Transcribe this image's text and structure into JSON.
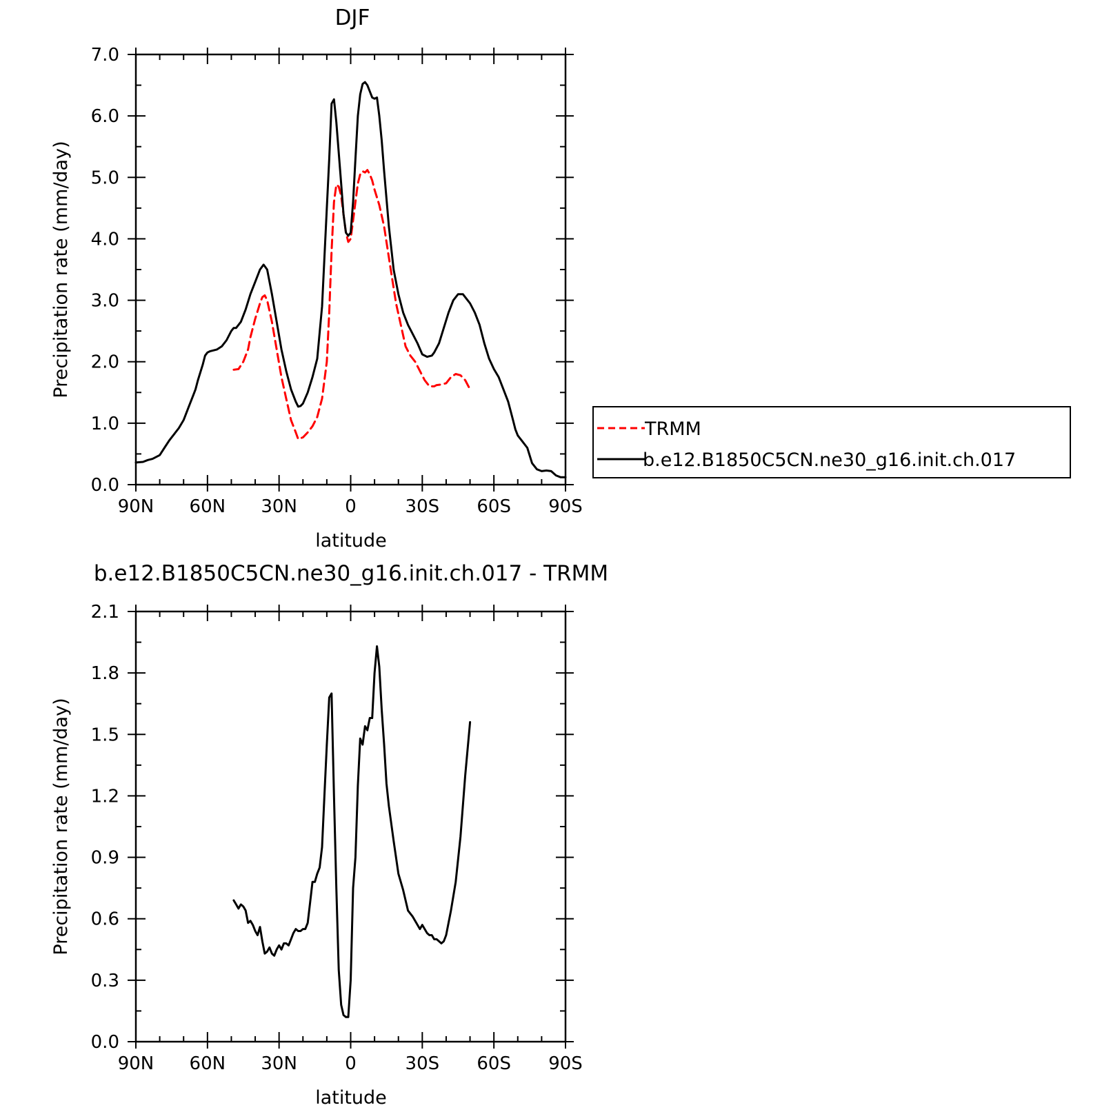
{
  "chart_data": [
    {
      "type": "line",
      "title": "DJF",
      "xlabel": "latitude",
      "ylabel": "Precipitation rate (mm/day)",
      "xlim": [
        -90,
        90
      ],
      "ylim": [
        0,
        7
      ],
      "x_ticks": [
        {
          "value": -90,
          "label": "90N"
        },
        {
          "value": -60,
          "label": "60N"
        },
        {
          "value": -30,
          "label": "30N"
        },
        {
          "value": 0,
          "label": "0"
        },
        {
          "value": 30,
          "label": "30S"
        },
        {
          "value": 60,
          "label": "60S"
        },
        {
          "value": 90,
          "label": "90S"
        }
      ],
      "y_ticks": [
        {
          "value": 0,
          "label": "0.0"
        },
        {
          "value": 1,
          "label": "1.0"
        },
        {
          "value": 2,
          "label": "2.0"
        },
        {
          "value": 3,
          "label": "3.0"
        },
        {
          "value": 4,
          "label": "4.0"
        },
        {
          "value": 5,
          "label": "5.0"
        },
        {
          "value": 6,
          "label": "6.0"
        },
        {
          "value": 7,
          "label": "7.0"
        }
      ],
      "legend_position": "right",
      "series": [
        {
          "name": "TRMM",
          "color": "#ff0000",
          "dash": "dashed",
          "x": [
            -49,
            -47,
            -45,
            -43,
            -42,
            -40,
            -38,
            -37,
            -36,
            -35,
            -33,
            -31,
            -29,
            -27,
            -25,
            -23,
            -22,
            -20,
            -18,
            -16,
            -14,
            -12,
            -10,
            -9,
            -8,
            -7,
            -6,
            -5,
            -4,
            -3,
            -2,
            -1,
            0,
            1,
            2,
            3,
            4,
            5,
            6,
            7,
            8,
            9,
            10,
            12,
            14,
            15,
            17,
            19,
            21,
            23,
            25,
            27,
            29,
            31,
            33,
            35,
            36,
            38,
            40,
            42,
            44,
            46,
            48,
            50
          ],
          "y": [
            1.87,
            1.88,
            2.0,
            2.2,
            2.4,
            2.7,
            2.95,
            3.05,
            3.08,
            3.0,
            2.65,
            2.2,
            1.75,
            1.4,
            1.05,
            0.85,
            0.74,
            0.77,
            0.85,
            0.95,
            1.1,
            1.4,
            2.0,
            2.8,
            3.8,
            4.6,
            4.88,
            4.85,
            4.7,
            4.4,
            4.1,
            3.95,
            4.0,
            4.3,
            4.6,
            4.9,
            5.05,
            5.1,
            5.08,
            5.12,
            5.05,
            4.95,
            4.8,
            4.55,
            4.2,
            3.95,
            3.45,
            2.95,
            2.6,
            2.25,
            2.1,
            2.0,
            1.85,
            1.7,
            1.6,
            1.6,
            1.62,
            1.63,
            1.65,
            1.75,
            1.8,
            1.78,
            1.7,
            1.55
          ]
        },
        {
          "name": "b.e12.B1850C5CN.ne30_g16.init.ch.017",
          "color": "#000000",
          "dash": "solid",
          "x": [
            -90,
            -87,
            -85,
            -83,
            -80,
            -78,
            -76,
            -74,
            -72,
            -70,
            -68,
            -66,
            -65,
            -64,
            -62,
            -61,
            -60,
            -59,
            -58,
            -56,
            -54,
            -52,
            -50,
            -49,
            -48,
            -46,
            -44,
            -42,
            -40,
            -38,
            -36.5,
            -35,
            -33,
            -31,
            -29,
            -27,
            -25,
            -23,
            -22,
            -21,
            -20,
            -18,
            -16,
            -14,
            -12,
            -10,
            -9,
            -8,
            -7,
            -6,
            -5,
            -4,
            -3,
            -2,
            -1,
            0,
            1,
            2,
            3,
            4,
            5,
            6,
            7,
            8,
            9,
            10,
            11,
            12,
            13,
            14,
            16,
            18,
            20,
            22,
            24,
            26,
            28,
            30,
            32,
            34,
            35,
            37,
            39,
            41,
            43,
            45,
            47,
            49,
            50,
            52,
            54,
            56,
            58,
            60,
            62,
            64,
            66,
            67,
            68,
            69,
            70,
            72,
            74,
            76,
            78,
            80,
            82,
            84,
            86,
            88,
            90
          ],
          "y": [
            0.36,
            0.37,
            0.4,
            0.42,
            0.48,
            0.6,
            0.72,
            0.82,
            0.92,
            1.05,
            1.25,
            1.45,
            1.55,
            1.7,
            1.95,
            2.1,
            2.15,
            2.17,
            2.18,
            2.2,
            2.25,
            2.35,
            2.5,
            2.55,
            2.55,
            2.65,
            2.85,
            3.1,
            3.3,
            3.5,
            3.58,
            3.5,
            3.1,
            2.65,
            2.2,
            1.85,
            1.55,
            1.35,
            1.27,
            1.28,
            1.32,
            1.5,
            1.75,
            2.05,
            2.9,
            4.5,
            5.3,
            6.2,
            6.27,
            5.9,
            5.4,
            4.9,
            4.4,
            4.1,
            4.05,
            4.1,
            4.6,
            5.3,
            6.0,
            6.35,
            6.52,
            6.55,
            6.5,
            6.4,
            6.3,
            6.28,
            6.3,
            6.0,
            5.6,
            5.1,
            4.2,
            3.5,
            3.1,
            2.8,
            2.6,
            2.45,
            2.3,
            2.12,
            2.08,
            2.1,
            2.15,
            2.3,
            2.55,
            2.8,
            3.0,
            3.1,
            3.1,
            3.0,
            2.95,
            2.8,
            2.6,
            2.3,
            2.05,
            1.88,
            1.75,
            1.55,
            1.35,
            1.2,
            1.05,
            0.9,
            0.8,
            0.7,
            0.6,
            0.35,
            0.25,
            0.22,
            0.23,
            0.22,
            0.15,
            0.12,
            0.12
          ]
        }
      ]
    },
    {
      "type": "line",
      "title": "b.e12.B1850C5CN.ne30_g16.init.ch.017 - TRMM",
      "xlabel": "latitude",
      "ylabel": "Precipitation rate (mm/day)",
      "xlim": [
        -90,
        90
      ],
      "ylim": [
        0,
        2.1
      ],
      "x_ticks": [
        {
          "value": -90,
          "label": "90N"
        },
        {
          "value": -60,
          "label": "60N"
        },
        {
          "value": -30,
          "label": "30N"
        },
        {
          "value": 0,
          "label": "0"
        },
        {
          "value": 30,
          "label": "30S"
        },
        {
          "value": 60,
          "label": "60S"
        },
        {
          "value": 90,
          "label": "90S"
        }
      ],
      "y_ticks": [
        {
          "value": 0,
          "label": "0.0"
        },
        {
          "value": 0.3,
          "label": "0.3"
        },
        {
          "value": 0.6,
          "label": "0.6"
        },
        {
          "value": 0.9,
          "label": "0.9"
        },
        {
          "value": 1.2,
          "label": "1.2"
        },
        {
          "value": 1.5,
          "label": "1.5"
        },
        {
          "value": 1.8,
          "label": "1.8"
        },
        {
          "value": 2.1,
          "label": "2.1"
        }
      ],
      "series": [
        {
          "color": "#000000",
          "dash": "solid",
          "x": [
            -49,
            -48,
            -47,
            -46,
            -45,
            -44,
            -43,
            -42,
            -41,
            -40,
            -39,
            -38,
            -37,
            -36,
            -35,
            -34,
            -33,
            -32,
            -31,
            -30,
            -29,
            -28,
            -27,
            -26,
            -25,
            -24,
            -23,
            -22,
            -21,
            -20,
            -19,
            -18,
            -17,
            -16,
            -15,
            -14,
            -13,
            -12,
            -11,
            -10,
            -9,
            -8,
            -7,
            -6,
            -5,
            -4,
            -3,
            -2,
            -1,
            0,
            1,
            2,
            3,
            4,
            5,
            6,
            7,
            8,
            9,
            10,
            11,
            12,
            13,
            14,
            15,
            16,
            18,
            20,
            22,
            24,
            26,
            28,
            29,
            30,
            31,
            32,
            33,
            34,
            35,
            36,
            37,
            38,
            39,
            40,
            42,
            44,
            46,
            48,
            50
          ],
          "y": [
            0.69,
            0.67,
            0.65,
            0.67,
            0.66,
            0.64,
            0.58,
            0.59,
            0.57,
            0.54,
            0.52,
            0.56,
            0.49,
            0.43,
            0.44,
            0.46,
            0.43,
            0.42,
            0.45,
            0.47,
            0.45,
            0.48,
            0.48,
            0.47,
            0.5,
            0.53,
            0.55,
            0.54,
            0.54,
            0.55,
            0.55,
            0.58,
            0.68,
            0.78,
            0.78,
            0.82,
            0.85,
            0.95,
            1.2,
            1.45,
            1.68,
            1.7,
            1.2,
            0.75,
            0.35,
            0.18,
            0.13,
            0.12,
            0.12,
            0.3,
            0.75,
            0.9,
            1.25,
            1.48,
            1.45,
            1.54,
            1.52,
            1.58,
            1.58,
            1.8,
            1.93,
            1.83,
            1.62,
            1.45,
            1.26,
            1.15,
            0.98,
            0.82,
            0.74,
            0.64,
            0.61,
            0.57,
            0.55,
            0.57,
            0.55,
            0.53,
            0.52,
            0.52,
            0.5,
            0.5,
            0.49,
            0.48,
            0.49,
            0.52,
            0.64,
            0.78,
            1.0,
            1.3,
            1.56
          ]
        }
      ]
    }
  ]
}
